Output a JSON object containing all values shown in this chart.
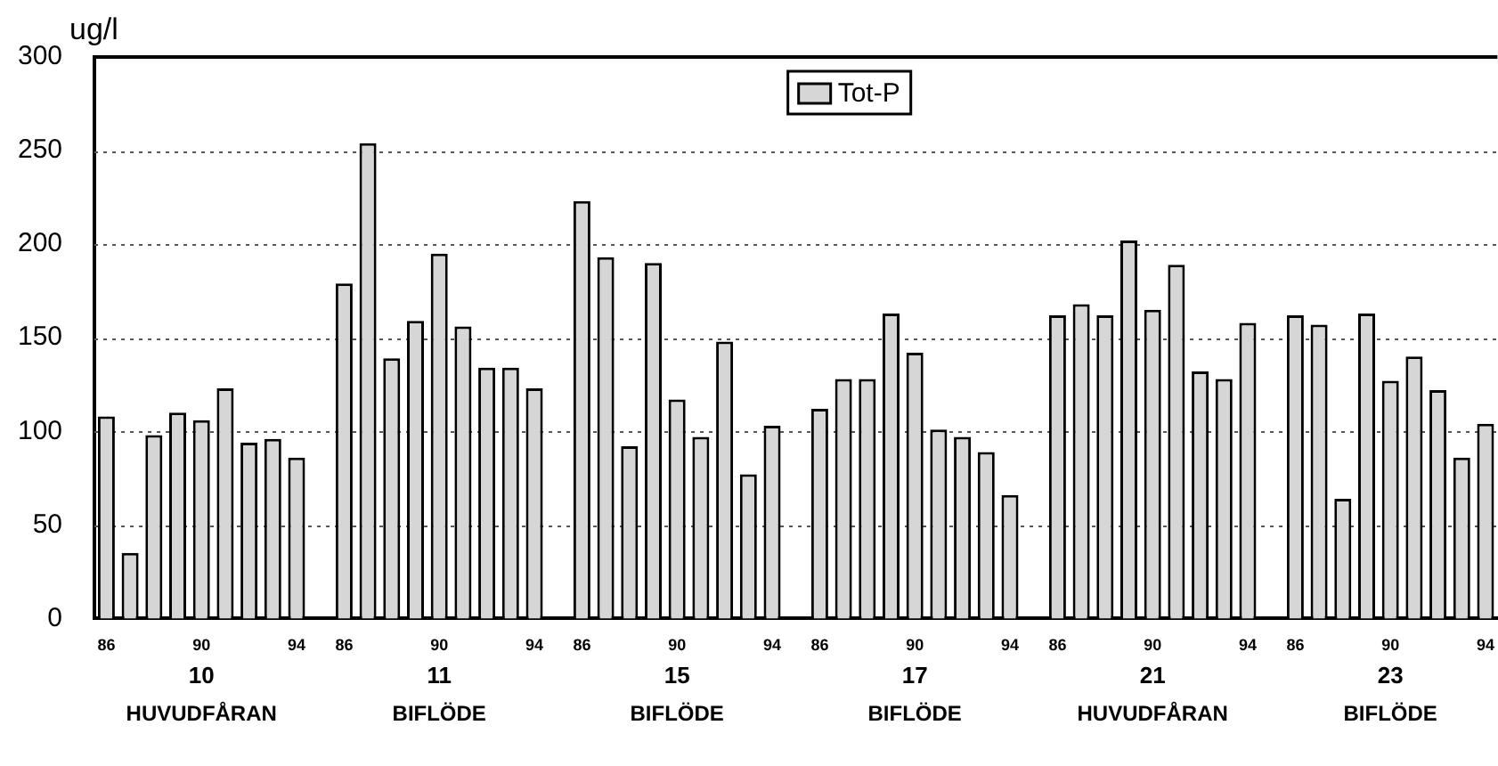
{
  "chart_data": {
    "type": "bar",
    "ylabel": "ug/l",
    "categories": [
      "86",
      null,
      null,
      null,
      "90",
      null,
      null,
      null,
      "94",
      null,
      "86",
      null,
      null,
      null,
      "90",
      null,
      null,
      null,
      "94",
      null,
      "86",
      null,
      null,
      null,
      "90",
      null,
      null,
      null,
      "94",
      null,
      "86",
      null,
      null,
      null,
      "90",
      null,
      null,
      null,
      "94",
      null,
      "86",
      null,
      null,
      null,
      "90",
      null,
      null,
      null,
      "94",
      null,
      "86",
      null,
      null,
      null,
      "90",
      null,
      null,
      null,
      "94"
    ],
    "series": [
      {
        "name": "Tot-P",
        "color": "#d6d6d6",
        "values": [
          108,
          35,
          98,
          110,
          106,
          123,
          94,
          96,
          86,
          null,
          179,
          254,
          139,
          159,
          195,
          156,
          134,
          134,
          123,
          null,
          223,
          193,
          92,
          190,
          117,
          97,
          148,
          77,
          103,
          null,
          112,
          128,
          128,
          163,
          142,
          101,
          97,
          89,
          66,
          null,
          162,
          168,
          162,
          202,
          165,
          189,
          132,
          128,
          158,
          null,
          162,
          157,
          64,
          163,
          127,
          140,
          122,
          86,
          104
        ]
      }
    ],
    "annotations": [
      "10",
      "HUVUDFÅRAN",
      "11",
      "BIFLÖDE",
      "15",
      "BIFLÖDE",
      "17",
      "BIFLÖDE",
      "21",
      "HUVUDFÅRAN",
      "23",
      "BIFLÖDE"
    ],
    "ylim": [
      0,
      300
    ],
    "yticks": [
      0,
      50,
      100,
      150,
      200,
      250,
      300
    ],
    "grid": "y",
    "legend": "top"
  }
}
